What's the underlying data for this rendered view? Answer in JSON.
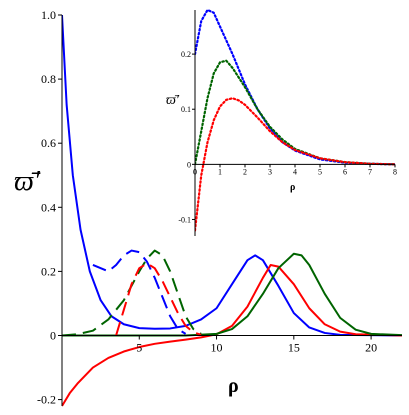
{
  "chart_data": [
    {
      "id": "main",
      "type": "line",
      "xlabel": "ρ",
      "ylabel": "ϖ̄′",
      "xlim": [
        0,
        22
      ],
      "ylim": [
        -0.22,
        1.0
      ],
      "x_ticks": [
        5,
        10,
        15,
        20
      ],
      "y_ticks": [
        -0.2,
        0,
        0.2,
        0.4,
        0.6,
        0.8,
        1.0
      ],
      "x_tick_labels": [
        "5",
        "10",
        "15",
        "20"
      ],
      "y_tick_labels": [
        "-0.2",
        "0",
        "0.2",
        "0.4",
        "0.6",
        "0.8",
        "1.0"
      ],
      "grid": false,
      "series": [
        {
          "color": "#0000ff",
          "style": "solid",
          "points": [
            [
              0,
              1.0
            ],
            [
              0.3,
              0.72
            ],
            [
              0.7,
              0.5
            ],
            [
              1.2,
              0.33
            ],
            [
              1.8,
              0.2
            ],
            [
              2.5,
              0.11
            ],
            [
              3.2,
              0.06
            ],
            [
              4,
              0.035
            ],
            [
              5,
              0.023
            ],
            [
              6,
              0.021
            ],
            [
              7,
              0.022
            ],
            [
              8,
              0.03
            ],
            [
              9,
              0.05
            ],
            [
              10,
              0.085
            ],
            [
              11,
              0.16
            ],
            [
              12,
              0.235
            ],
            [
              12.5,
              0.25
            ],
            [
              13,
              0.235
            ],
            [
              14,
              0.155
            ],
            [
              15,
              0.07
            ],
            [
              16,
              0.025
            ],
            [
              17,
              0.008
            ],
            [
              18,
              0.002
            ],
            [
              22,
              0
            ]
          ]
        },
        {
          "color": "#ff0000",
          "style": "solid",
          "points": [
            [
              0,
              -0.22
            ],
            [
              0.5,
              -0.18
            ],
            [
              1,
              -0.15
            ],
            [
              2,
              -0.1
            ],
            [
              3,
              -0.07
            ],
            [
              4,
              -0.05
            ],
            [
              5,
              -0.036
            ],
            [
              6,
              -0.026
            ],
            [
              7,
              -0.019
            ],
            [
              8,
              -0.013
            ],
            [
              9,
              -0.006
            ],
            [
              10,
              0.004
            ],
            [
              11,
              0.03
            ],
            [
              12,
              0.09
            ],
            [
              13,
              0.18
            ],
            [
              13.5,
              0.22
            ],
            [
              14,
              0.215
            ],
            [
              15,
              0.16
            ],
            [
              16,
              0.085
            ],
            [
              17,
              0.035
            ],
            [
              18,
              0.012
            ],
            [
              19,
              0.004
            ],
            [
              22,
              0
            ]
          ]
        },
        {
          "color": "#006400",
          "style": "solid",
          "points": [
            [
              0,
              0
            ],
            [
              4,
              0
            ],
            [
              8,
              0
            ],
            [
              10,
              0.005
            ],
            [
              11,
              0.02
            ],
            [
              12,
              0.06
            ],
            [
              13,
              0.13
            ],
            [
              14,
              0.21
            ],
            [
              15,
              0.255
            ],
            [
              15.5,
              0.25
            ],
            [
              16,
              0.22
            ],
            [
              17,
              0.13
            ],
            [
              18,
              0.055
            ],
            [
              19,
              0.018
            ],
            [
              20,
              0.005
            ],
            [
              22,
              0.001
            ]
          ]
        },
        {
          "color": "#0000ff",
          "style": "dashed",
          "points": [
            [
              2,
              0.22
            ],
            [
              3,
              0.2
            ],
            [
              3.5,
              0.22
            ],
            [
              4,
              0.25
            ],
            [
              4.5,
              0.265
            ],
            [
              5,
              0.26
            ],
            [
              5.5,
              0.23
            ],
            [
              6,
              0.18
            ],
            [
              6.5,
              0.12
            ],
            [
              7,
              0.06
            ],
            [
              7.5,
              0.02
            ],
            [
              8,
              0.005
            ]
          ]
        },
        {
          "color": "#006400",
          "style": "dashed",
          "points": [
            [
              0,
              0
            ],
            [
              1,
              0.004
            ],
            [
              2,
              0.015
            ],
            [
              3,
              0.05
            ],
            [
              4,
              0.11
            ],
            [
              5,
              0.2
            ],
            [
              5.5,
              0.24
            ],
            [
              6,
              0.265
            ],
            [
              6.5,
              0.25
            ],
            [
              7,
              0.2
            ],
            [
              7.5,
              0.13
            ],
            [
              8,
              0.06
            ],
            [
              8.5,
              0.02
            ],
            [
              9,
              0.005
            ]
          ]
        },
        {
          "color": "#ff0000",
          "style": "dashed",
          "points": [
            [
              3.5,
              0
            ],
            [
              4,
              0.08
            ],
            [
              4.5,
              0.16
            ],
            [
              5,
              0.21
            ],
            [
              5.5,
              0.225
            ],
            [
              6,
              0.21
            ],
            [
              6.5,
              0.17
            ],
            [
              7,
              0.12
            ],
            [
              7.5,
              0.07
            ],
            [
              8,
              0.03
            ],
            [
              8.5,
              0.01
            ],
            [
              9,
              0.002
            ]
          ]
        }
      ]
    },
    {
      "id": "inset",
      "type": "line",
      "xlabel": "ρ",
      "ylabel": "ϖ̄′",
      "xlim": [
        0,
        8
      ],
      "ylim": [
        -0.13,
        0.28
      ],
      "x_ticks": [
        0,
        1,
        2,
        3,
        4,
        5,
        6,
        7,
        8
      ],
      "y_ticks": [
        -0.1,
        0,
        0.1,
        0.2
      ],
      "x_tick_labels": [
        "0",
        "1",
        "2",
        "3",
        "4",
        "5",
        "6",
        "7",
        "8"
      ],
      "y_tick_labels": [
        "-0.1",
        "0",
        "0.1",
        "0.2"
      ],
      "grid": false,
      "series": [
        {
          "color": "#0000ff",
          "style": "dotted",
          "points": [
            [
              0,
              0.2
            ],
            [
              0.25,
              0.26
            ],
            [
              0.5,
              0.28
            ],
            [
              0.75,
              0.275
            ],
            [
              1,
              0.25
            ],
            [
              1.5,
              0.2
            ],
            [
              2,
              0.145
            ],
            [
              2.5,
              0.1
            ],
            [
              3,
              0.065
            ],
            [
              3.5,
              0.04
            ],
            [
              4,
              0.025
            ],
            [
              5,
              0.009
            ],
            [
              6,
              0.003
            ],
            [
              7,
              0.001
            ],
            [
              8,
              0
            ]
          ]
        },
        {
          "color": "#006400",
          "style": "dotted",
          "points": [
            [
              0,
              0
            ],
            [
              0.25,
              0.06
            ],
            [
              0.5,
              0.12
            ],
            [
              0.75,
              0.165
            ],
            [
              1,
              0.185
            ],
            [
              1.25,
              0.188
            ],
            [
              1.5,
              0.175
            ],
            [
              2,
              0.14
            ],
            [
              2.5,
              0.1
            ],
            [
              3,
              0.068
            ],
            [
              3.5,
              0.045
            ],
            [
              4,
              0.028
            ],
            [
              5,
              0.011
            ],
            [
              6,
              0.004
            ],
            [
              7,
              0.001
            ],
            [
              8,
              0
            ]
          ]
        },
        {
          "color": "#ff0000",
          "style": "dotted",
          "points": [
            [
              0,
              -0.12
            ],
            [
              0.25,
              -0.02
            ],
            [
              0.5,
              0.04
            ],
            [
              0.75,
              0.08
            ],
            [
              1,
              0.105
            ],
            [
              1.25,
              0.117
            ],
            [
              1.5,
              0.12
            ],
            [
              1.75,
              0.116
            ],
            [
              2,
              0.108
            ],
            [
              2.5,
              0.085
            ],
            [
              3,
              0.06
            ],
            [
              3.5,
              0.04
            ],
            [
              4,
              0.026
            ],
            [
              5,
              0.011
            ],
            [
              6,
              0.004
            ],
            [
              7,
              0.001
            ],
            [
              8,
              0
            ]
          ]
        }
      ]
    }
  ]
}
